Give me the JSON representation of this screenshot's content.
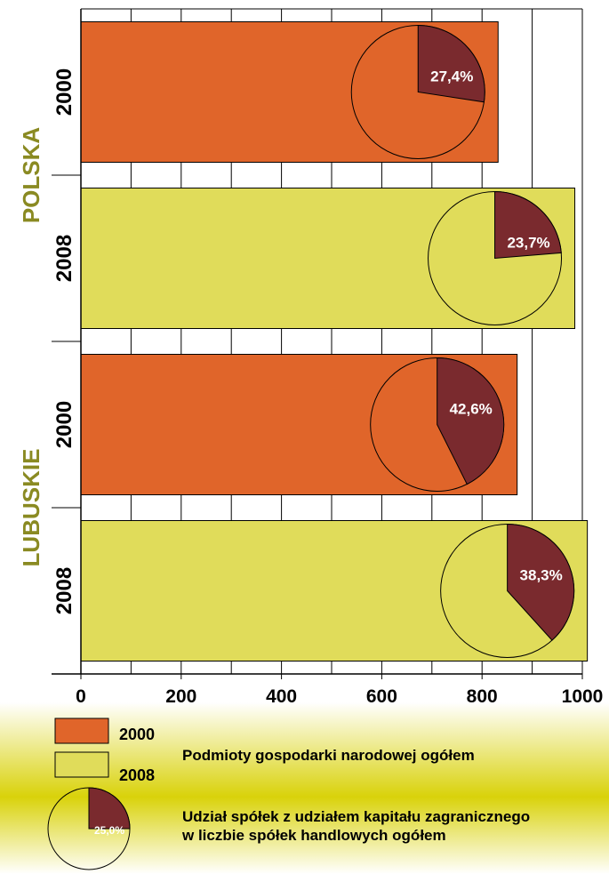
{
  "chart_data": {
    "type": "bar",
    "orientation": "horizontal",
    "groups": [
      {
        "name": "POLSKA",
        "bars": [
          {
            "category": "2000",
            "value": 832,
            "pie_share": 27.4,
            "pie_label": "27,4%"
          },
          {
            "category": "2008",
            "value": 985,
            "pie_share": 23.7,
            "pie_label": "23,7%"
          }
        ]
      },
      {
        "name": "LUBUSKIE",
        "bars": [
          {
            "category": "2000",
            "value": 870,
            "pie_share": 42.6,
            "pie_label": "42,6%"
          },
          {
            "category": "2008",
            "value": 1010,
            "pie_share": 38.3,
            "pie_label": "38,3%"
          }
        ]
      }
    ],
    "xlim": [
      0,
      1000
    ],
    "xticks": [
      "0",
      "200",
      "400",
      "600",
      "800",
      "1000"
    ],
    "grid": true,
    "legend": {
      "position": "bottom",
      "series": [
        {
          "label": "2000",
          "color": "#e0652a"
        },
        {
          "label": "2008",
          "color": "#e0dc5a"
        }
      ],
      "bar_caption": "Podmioty gospodarki narodowej ogółem",
      "pie_sample_share": 25.0,
      "pie_sample_label": "25,0%",
      "pie_caption_lines": [
        "Udział spółek z udziałem kapitału zagranicznego",
        "w liczbie spółek handlowych ogółem"
      ]
    },
    "colors": {
      "bar_2000": "#e0652a",
      "bar_2008": "#e0dc5a",
      "pie_share": "#7a2a2e",
      "group_label": "#8a8a22"
    }
  }
}
